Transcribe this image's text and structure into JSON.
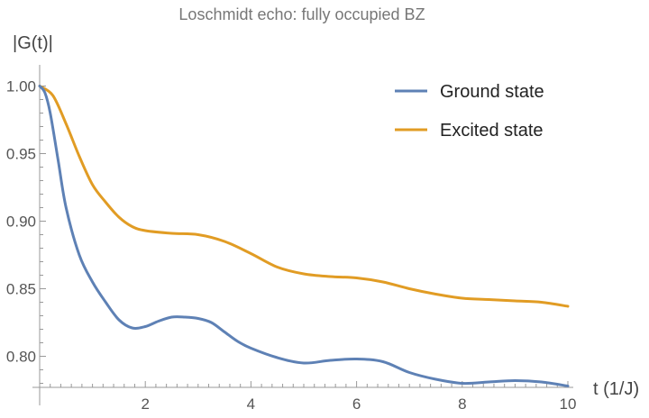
{
  "chart_data": {
    "type": "line",
    "title": "Loschmidt echo: fully occupied BZ",
    "xlabel": "t (1/J)",
    "ylabel": "|G(t)|",
    "xlim": [
      0,
      10
    ],
    "ylim": [
      0.777,
      1.005
    ],
    "x_ticks": [
      {
        "value": 2,
        "label": "2"
      },
      {
        "value": 4,
        "label": "4"
      },
      {
        "value": 6,
        "label": "6"
      },
      {
        "value": 8,
        "label": "8"
      },
      {
        "value": 10,
        "label": "10"
      }
    ],
    "y_ticks": [
      {
        "value": 0.8,
        "label": "0.80"
      },
      {
        "value": 0.85,
        "label": "0.85"
      },
      {
        "value": 0.9,
        "label": "0.90"
      },
      {
        "value": 0.95,
        "label": "0.95"
      },
      {
        "value": 1.0,
        "label": "1.00"
      }
    ],
    "grid": false,
    "legend_position": "top-right",
    "series": [
      {
        "name": "Ground state",
        "color": "#5e81b5",
        "x": [
          0,
          0.1,
          0.2,
          0.35,
          0.5,
          0.75,
          1.0,
          1.25,
          1.5,
          1.75,
          2.0,
          2.25,
          2.5,
          2.75,
          3.0,
          3.25,
          3.5,
          3.75,
          4.0,
          4.5,
          5.0,
          5.5,
          6.0,
          6.5,
          7.0,
          7.5,
          8.0,
          8.5,
          9.0,
          9.5,
          10.0
        ],
        "y": [
          1.0,
          0.995,
          0.98,
          0.945,
          0.91,
          0.875,
          0.855,
          0.84,
          0.827,
          0.821,
          0.822,
          0.826,
          0.829,
          0.829,
          0.828,
          0.825,
          0.818,
          0.811,
          0.806,
          0.799,
          0.795,
          0.797,
          0.798,
          0.796,
          0.788,
          0.783,
          0.78,
          0.781,
          0.782,
          0.781,
          0.778
        ]
      },
      {
        "name": "Excited state",
        "color": "#e19c24",
        "x": [
          0,
          0.25,
          0.5,
          0.75,
          1.0,
          1.25,
          1.5,
          1.75,
          2.0,
          2.5,
          3.0,
          3.5,
          4.0,
          4.5,
          5.0,
          5.5,
          6.0,
          6.5,
          7.0,
          7.5,
          8.0,
          8.5,
          9.0,
          9.5,
          10.0
        ],
        "y": [
          1.0,
          0.993,
          0.972,
          0.948,
          0.927,
          0.914,
          0.903,
          0.896,
          0.893,
          0.891,
          0.89,
          0.885,
          0.876,
          0.866,
          0.861,
          0.859,
          0.858,
          0.855,
          0.85,
          0.846,
          0.843,
          0.842,
          0.841,
          0.84,
          0.837
        ]
      }
    ]
  }
}
